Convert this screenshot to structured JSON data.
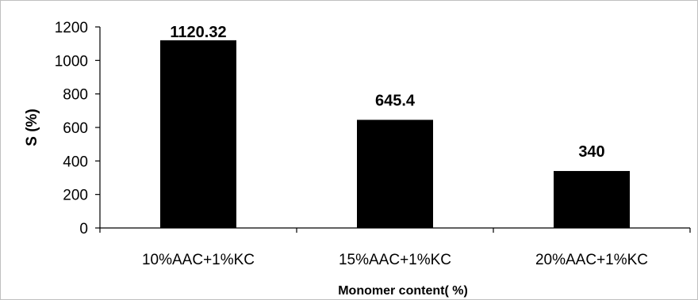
{
  "chart_data": {
    "type": "bar",
    "categories": [
      "10%AAC+1%KC",
      "15%AAC+1%KC",
      "20%AAC+1%KC"
    ],
    "values": [
      1120.32,
      645.4,
      340
    ],
    "data_labels": [
      "1120.32",
      "645.4",
      "340"
    ],
    "xlabel": "Monomer content( %)",
    "ylabel": "S (%)",
    "ylim": [
      0,
      1200
    ],
    "yticks": [
      0,
      200,
      400,
      600,
      800,
      1000,
      1200
    ],
    "bar_color": "#000000",
    "grid": false,
    "legend": "none"
  }
}
